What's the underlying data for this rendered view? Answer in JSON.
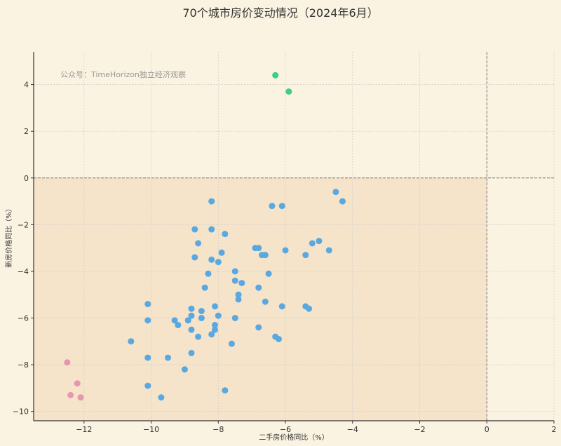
{
  "chart_data": {
    "type": "scatter",
    "title": "70个城市房价变动情况（2024年6月）",
    "xlabel": "二手房价格同比（%）",
    "ylabel": "新房价格同比（%）",
    "watermark": "公众号：TimeHorizon独立经济观察",
    "xlim": [
      -13.5,
      2
    ],
    "ylim": [
      -10.4,
      5.4
    ],
    "xticks": [
      -12,
      -10,
      -8,
      -6,
      -4,
      -2,
      0,
      2
    ],
    "yticks": [
      -10,
      -8,
      -6,
      -4,
      -2,
      0,
      2,
      4
    ],
    "grid": true,
    "reference_lines": {
      "x": 0,
      "y": 0
    },
    "shaded_region": "x<0 and y<0",
    "colors": {
      "background": "#faf3e1",
      "shade": "#f5e4ca",
      "green": "#3ecf84",
      "pink": "#e896b0",
      "blue": "#5aa8e0"
    },
    "series": [
      {
        "color": "green",
        "points": [
          [
            -6.3,
            4.4
          ],
          [
            -5.9,
            3.7
          ]
        ]
      },
      {
        "color": "pink",
        "points": [
          [
            -12.5,
            -7.9
          ],
          [
            -12.2,
            -8.8
          ],
          [
            -12.4,
            -9.3
          ],
          [
            -12.1,
            -9.4
          ]
        ]
      },
      {
        "color": "blue",
        "points": [
          [
            -4.5,
            -0.6
          ],
          [
            -4.3,
            -1.0
          ],
          [
            -8.2,
            -1.0
          ],
          [
            -6.4,
            -1.2
          ],
          [
            -6.1,
            -1.2
          ],
          [
            -8.7,
            -2.2
          ],
          [
            -8.2,
            -2.2
          ],
          [
            -7.8,
            -2.4
          ],
          [
            -8.6,
            -2.8
          ],
          [
            -5.0,
            -2.7
          ],
          [
            -5.2,
            -2.8
          ],
          [
            -6.9,
            -3.0
          ],
          [
            -6.8,
            -3.0
          ],
          [
            -4.7,
            -3.1
          ],
          [
            -6.0,
            -3.1
          ],
          [
            -7.9,
            -3.2
          ],
          [
            -6.7,
            -3.3
          ],
          [
            -6.6,
            -3.3
          ],
          [
            -5.4,
            -3.3
          ],
          [
            -8.7,
            -3.4
          ],
          [
            -8.2,
            -3.5
          ],
          [
            -8.0,
            -3.6
          ],
          [
            -7.5,
            -4.0
          ],
          [
            -8.3,
            -4.1
          ],
          [
            -6.5,
            -4.1
          ],
          [
            -7.5,
            -4.4
          ],
          [
            -7.3,
            -4.5
          ],
          [
            -8.4,
            -4.7
          ],
          [
            -6.8,
            -4.7
          ],
          [
            -7.4,
            -5.0
          ],
          [
            -7.4,
            -5.2
          ],
          [
            -6.6,
            -5.3
          ],
          [
            -10.1,
            -5.4
          ],
          [
            -6.1,
            -5.5
          ],
          [
            -5.4,
            -5.5
          ],
          [
            -5.3,
            -5.6
          ],
          [
            -8.1,
            -5.5
          ],
          [
            -8.8,
            -5.6
          ],
          [
            -8.5,
            -5.7
          ],
          [
            -8.0,
            -5.9
          ],
          [
            -8.8,
            -5.9
          ],
          [
            -8.5,
            -6.0
          ],
          [
            -7.5,
            -6.0
          ],
          [
            -10.1,
            -6.1
          ],
          [
            -9.3,
            -6.1
          ],
          [
            -8.9,
            -6.1
          ],
          [
            -9.2,
            -6.3
          ],
          [
            -8.1,
            -6.3
          ],
          [
            -8.1,
            -6.5
          ],
          [
            -8.8,
            -6.5
          ],
          [
            -6.8,
            -6.4
          ],
          [
            -8.2,
            -6.7
          ],
          [
            -8.6,
            -6.8
          ],
          [
            -6.3,
            -6.8
          ],
          [
            -6.2,
            -6.9
          ],
          [
            -10.6,
            -7.0
          ],
          [
            -7.6,
            -7.1
          ],
          [
            -8.8,
            -7.5
          ],
          [
            -10.1,
            -7.7
          ],
          [
            -9.5,
            -7.7
          ],
          [
            -9.0,
            -8.2
          ],
          [
            -10.1,
            -8.9
          ],
          [
            -7.8,
            -9.1
          ],
          [
            -9.7,
            -9.4
          ]
        ]
      }
    ]
  }
}
